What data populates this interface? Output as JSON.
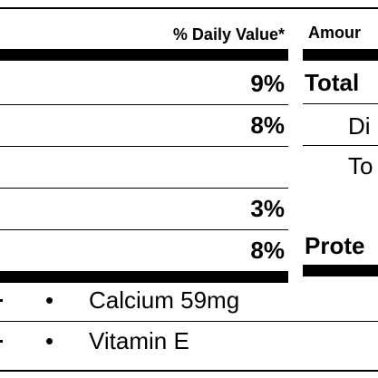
{
  "left": {
    "header": "% Daily Value*",
    "rows": [
      {
        "pct": "9%"
      },
      {
        "pct": "8%"
      },
      {
        "pct": ""
      },
      {
        "pct": "3%"
      },
      {
        "pct": "8%"
      }
    ]
  },
  "right": {
    "header": "Amour",
    "rows": [
      "Total",
      "Di",
      "To",
      "",
      "Prote"
    ]
  },
  "vitamins": [
    {
      "bullet": "•",
      "name": "Calcium 59mg"
    },
    {
      "bullet": "•",
      "name": "Vitamin E"
    }
  ]
}
